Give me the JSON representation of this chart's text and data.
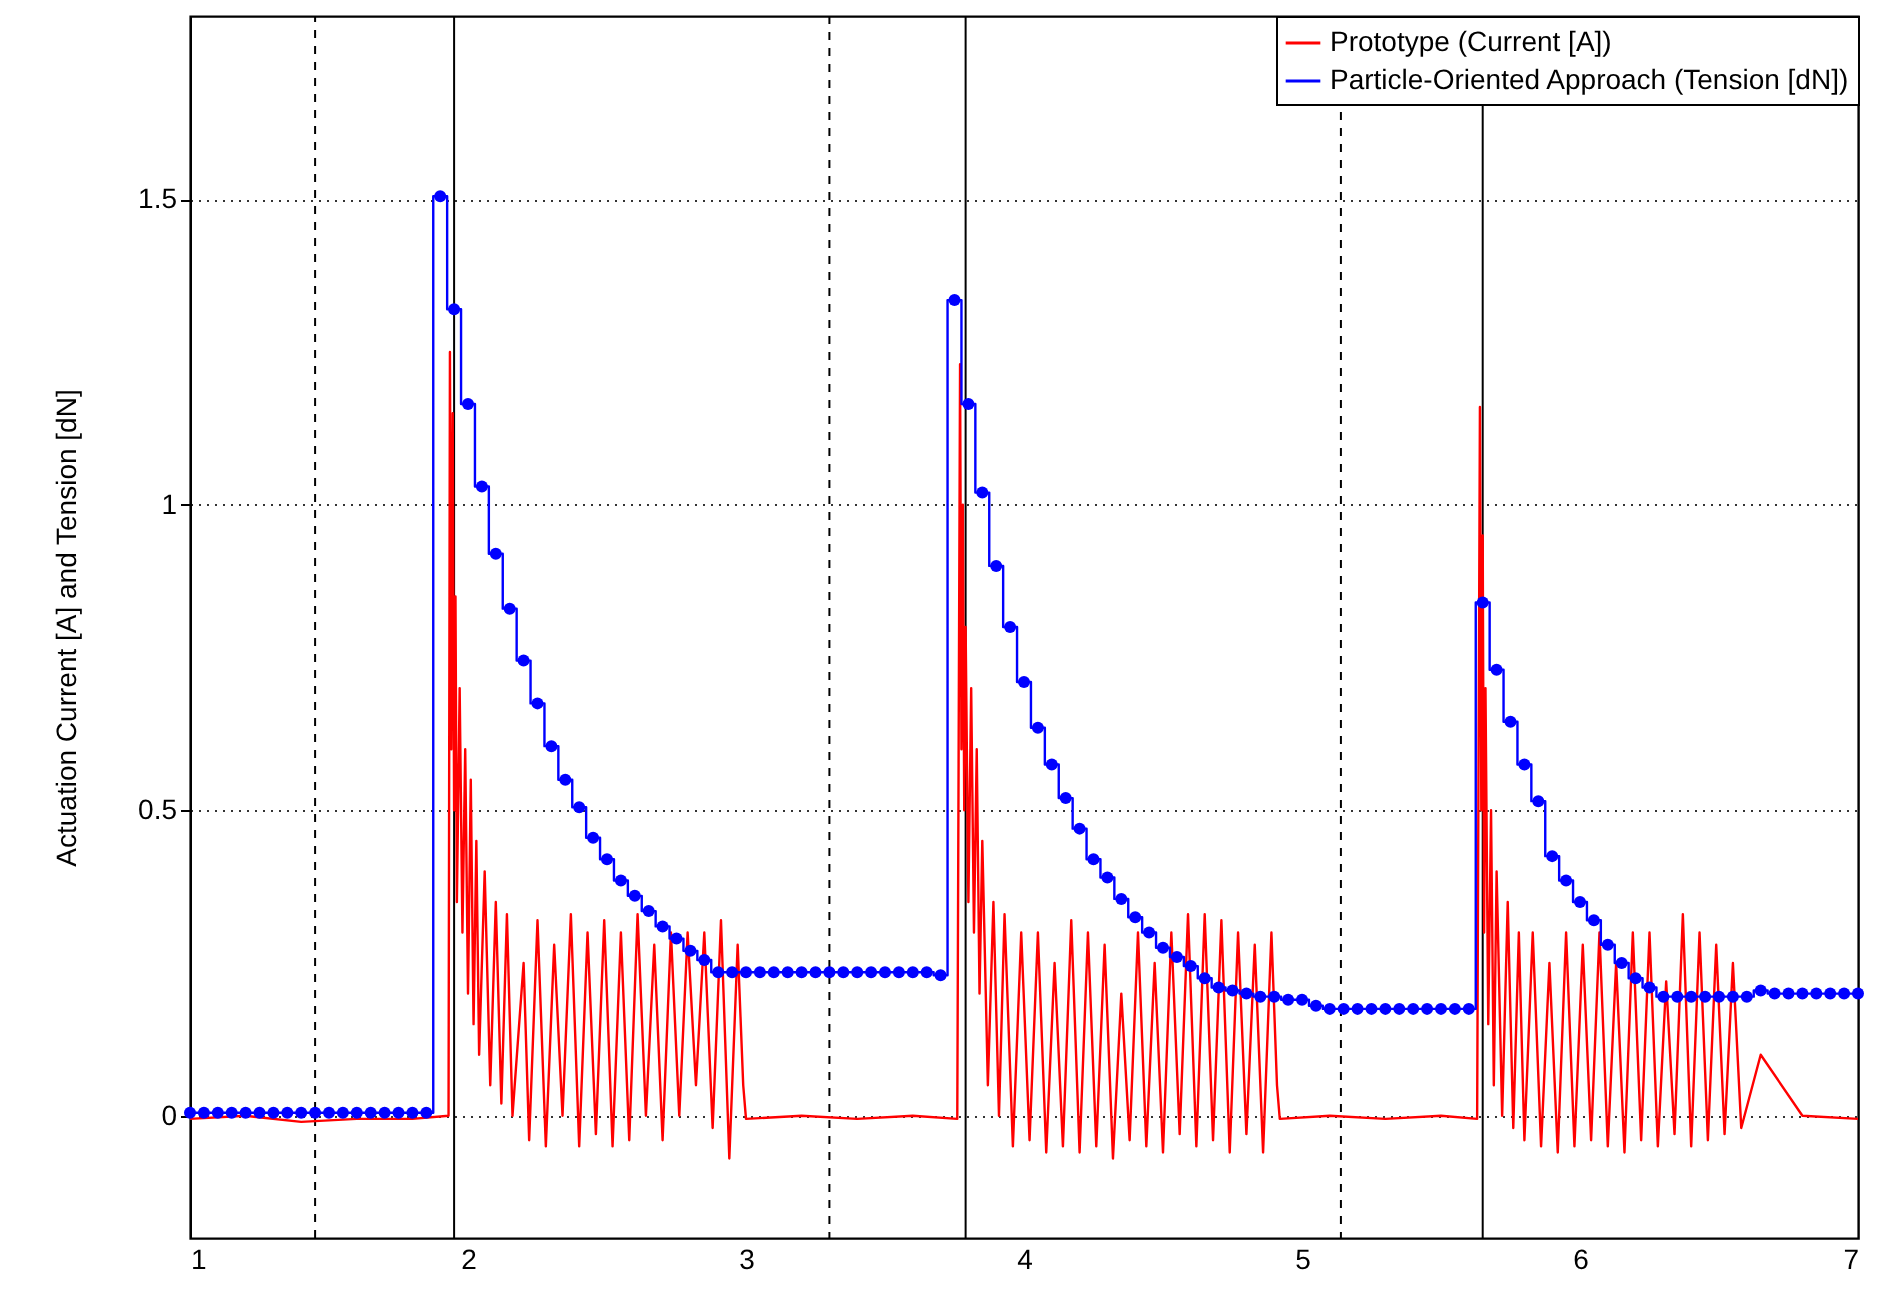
{
  "chart_data": {
    "type": "line",
    "ylabel": "Actuation Current [A] and Tension [dN]",
    "xlim": [
      1,
      7
    ],
    "xticks": [
      1,
      2,
      3,
      4,
      5,
      6,
      7
    ],
    "ylim": [
      -0.2,
      1.8
    ],
    "yticks": [
      0,
      0.5,
      1,
      1.5
    ],
    "grid": "y",
    "legend": "top right",
    "ref_lines": [
      {
        "axis": "x",
        "value": 1.45,
        "line_style": "dashed",
        "color": "#000000"
      },
      {
        "axis": "x",
        "value": 1.95,
        "line_style": "solid",
        "color": "#000000"
      },
      {
        "axis": "x",
        "value": 3.3,
        "line_style": "dashed",
        "color": "#000000"
      },
      {
        "axis": "x",
        "value": 3.79,
        "line_style": "solid",
        "color": "#000000"
      },
      {
        "axis": "x",
        "value": 5.14,
        "line_style": "dashed",
        "color": "#000000"
      },
      {
        "axis": "x",
        "value": 5.65,
        "line_style": "solid",
        "color": "#000000"
      }
    ],
    "series": [
      {
        "name": "Prototype (Current [A])",
        "color": "#ff0000",
        "marker": "none",
        "x": [
          1.0,
          1.2,
          1.4,
          1.6,
          1.8,
          1.93,
          1.935,
          1.94,
          1.945,
          1.95,
          1.955,
          1.96,
          1.97,
          1.98,
          1.99,
          2.0,
          2.01,
          2.02,
          2.03,
          2.04,
          2.06,
          2.08,
          2.1,
          2.12,
          2.14,
          2.16,
          2.2,
          2.22,
          2.25,
          2.28,
          2.31,
          2.34,
          2.37,
          2.4,
          2.43,
          2.46,
          2.49,
          2.52,
          2.55,
          2.58,
          2.61,
          2.64,
          2.67,
          2.7,
          2.73,
          2.76,
          2.79,
          2.82,
          2.85,
          2.88,
          2.91,
          2.94,
          2.97,
          2.99,
          3.0,
          3.2,
          3.4,
          3.6,
          3.76,
          3.77,
          3.775,
          3.78,
          3.785,
          3.79,
          3.8,
          3.81,
          3.82,
          3.83,
          3.84,
          3.85,
          3.87,
          3.89,
          3.91,
          3.93,
          3.96,
          3.99,
          4.02,
          4.05,
          4.08,
          4.11,
          4.14,
          4.17,
          4.2,
          4.23,
          4.26,
          4.29,
          4.32,
          4.35,
          4.38,
          4.41,
          4.44,
          4.47,
          4.5,
          4.53,
          4.56,
          4.59,
          4.62,
          4.65,
          4.68,
          4.71,
          4.74,
          4.77,
          4.8,
          4.83,
          4.86,
          4.89,
          4.91,
          4.92,
          5.1,
          5.3,
          5.5,
          5.63,
          5.64,
          5.645,
          5.65,
          5.655,
          5.66,
          5.67,
          5.68,
          5.69,
          5.7,
          5.72,
          5.74,
          5.76,
          5.78,
          5.8,
          5.83,
          5.86,
          5.89,
          5.92,
          5.95,
          5.98,
          6.01,
          6.04,
          6.07,
          6.1,
          6.13,
          6.16,
          6.19,
          6.22,
          6.25,
          6.28,
          6.31,
          6.34,
          6.37,
          6.4,
          6.43,
          6.46,
          6.49,
          6.52,
          6.55,
          6.58,
          6.65,
          6.8,
          7.0
        ],
        "values": [
          -0.005,
          0.0,
          -0.01,
          -0.005,
          -0.005,
          0.0,
          1.25,
          0.6,
          1.15,
          0.5,
          0.85,
          0.35,
          0.7,
          0.3,
          0.6,
          0.2,
          0.55,
          0.15,
          0.45,
          0.1,
          0.4,
          0.05,
          0.35,
          0.02,
          0.33,
          0.0,
          0.25,
          -0.04,
          0.32,
          -0.05,
          0.28,
          0.0,
          0.33,
          -0.05,
          0.3,
          -0.03,
          0.32,
          -0.05,
          0.3,
          -0.04,
          0.33,
          0.0,
          0.28,
          -0.04,
          0.3,
          0.0,
          0.3,
          0.05,
          0.3,
          -0.02,
          0.32,
          -0.07,
          0.28,
          0.05,
          -0.005,
          0.0,
          -0.005,
          0.0,
          -0.005,
          1.23,
          0.6,
          1.0,
          0.5,
          0.8,
          0.35,
          0.7,
          0.3,
          0.6,
          0.2,
          0.45,
          0.05,
          0.35,
          0.0,
          0.33,
          -0.05,
          0.3,
          -0.04,
          0.3,
          -0.06,
          0.25,
          -0.05,
          0.32,
          -0.06,
          0.3,
          -0.05,
          0.28,
          -0.07,
          0.2,
          -0.04,
          0.3,
          -0.05,
          0.25,
          -0.06,
          0.3,
          -0.03,
          0.33,
          -0.05,
          0.33,
          -0.04,
          0.32,
          -0.06,
          0.3,
          -0.03,
          0.28,
          -0.06,
          0.3,
          0.05,
          -0.005,
          0.0,
          -0.005,
          0.0,
          -0.005,
          1.16,
          0.5,
          0.95,
          0.3,
          0.7,
          0.15,
          0.5,
          0.05,
          0.4,
          0.0,
          0.35,
          -0.02,
          0.3,
          -0.04,
          0.3,
          -0.05,
          0.25,
          -0.06,
          0.3,
          -0.05,
          0.28,
          -0.04,
          0.3,
          -0.05,
          0.25,
          -0.06,
          0.3,
          -0.04,
          0.3,
          -0.05,
          0.22,
          -0.03,
          0.33,
          -0.05,
          0.3,
          -0.04,
          0.28,
          -0.03,
          0.25,
          -0.02,
          0.1,
          0.0,
          -0.005
        ]
      },
      {
        "name": "Particle-Oriented Approach (Tension [dN])",
        "color": "#0000ff",
        "type": "step",
        "marker": "circle",
        "x": [
          1.0,
          1.05,
          1.1,
          1.15,
          1.2,
          1.25,
          1.3,
          1.35,
          1.4,
          1.45,
          1.5,
          1.55,
          1.6,
          1.65,
          1.7,
          1.75,
          1.8,
          1.85,
          1.9,
          1.95,
          2.0,
          2.05,
          2.1,
          2.15,
          2.2,
          2.25,
          2.3,
          2.35,
          2.4,
          2.45,
          2.5,
          2.55,
          2.6,
          2.65,
          2.7,
          2.75,
          2.8,
          2.85,
          2.9,
          2.95,
          3.0,
          3.05,
          3.1,
          3.15,
          3.2,
          3.25,
          3.3,
          3.35,
          3.4,
          3.45,
          3.5,
          3.55,
          3.6,
          3.65,
          3.7,
          3.75,
          3.8,
          3.85,
          3.9,
          3.95,
          4.0,
          4.05,
          4.1,
          4.15,
          4.2,
          4.25,
          4.3,
          4.35,
          4.4,
          4.45,
          4.5,
          4.55,
          4.6,
          4.65,
          4.7,
          4.75,
          4.8,
          4.85,
          4.9,
          4.95,
          5.0,
          5.05,
          5.1,
          5.15,
          5.2,
          5.25,
          5.3,
          5.35,
          5.4,
          5.45,
          5.5,
          5.55,
          5.6,
          5.65,
          5.7,
          5.75,
          5.8,
          5.85,
          5.9,
          5.95,
          6.0,
          6.05,
          6.1,
          6.15,
          6.2,
          6.25,
          6.3,
          6.35,
          6.4,
          6.45,
          6.5,
          6.55,
          6.6,
          6.65,
          6.7,
          6.75,
          6.8,
          6.85,
          6.9,
          6.95,
          7.0
        ],
        "values": [
          0.005,
          0.005,
          0.005,
          0.005,
          0.005,
          0.005,
          0.005,
          0.005,
          0.005,
          0.005,
          0.005,
          0.005,
          0.005,
          0.005,
          0.005,
          0.005,
          0.005,
          0.005,
          1.505,
          1.32,
          1.165,
          1.03,
          0.92,
          0.83,
          0.745,
          0.675,
          0.605,
          0.55,
          0.505,
          0.455,
          0.42,
          0.385,
          0.36,
          0.335,
          0.31,
          0.29,
          0.27,
          0.255,
          0.235,
          0.235,
          0.235,
          0.235,
          0.235,
          0.235,
          0.235,
          0.235,
          0.235,
          0.235,
          0.235,
          0.235,
          0.235,
          0.235,
          0.235,
          0.235,
          0.23,
          1.335,
          1.165,
          1.02,
          0.9,
          0.8,
          0.71,
          0.635,
          0.575,
          0.52,
          0.47,
          0.42,
          0.39,
          0.355,
          0.325,
          0.3,
          0.275,
          0.26,
          0.245,
          0.225,
          0.21,
          0.205,
          0.2,
          0.195,
          0.195,
          0.19,
          0.19,
          0.18,
          0.175,
          0.175,
          0.175,
          0.175,
          0.175,
          0.175,
          0.175,
          0.175,
          0.175,
          0.175,
          0.175,
          0.84,
          0.73,
          0.645,
          0.575,
          0.515,
          0.425,
          0.385,
          0.35,
          0.32,
          0.28,
          0.25,
          0.225,
          0.21,
          0.195,
          0.195,
          0.195,
          0.195,
          0.195,
          0.195,
          0.195,
          0.205,
          0.2,
          0.2,
          0.2,
          0.2,
          0.2,
          0.2,
          0.2
        ]
      }
    ]
  }
}
